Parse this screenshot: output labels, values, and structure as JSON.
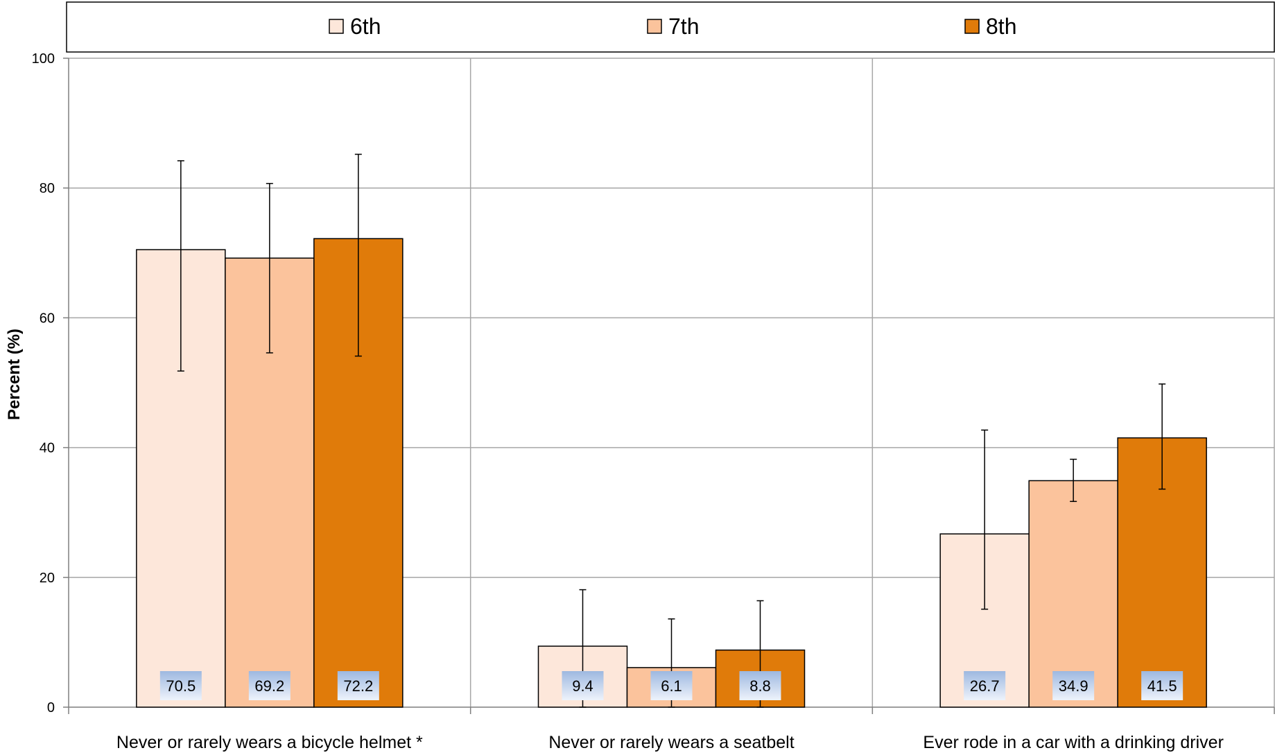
{
  "chart_data": {
    "type": "bar",
    "categories": [
      "Never or rarely wears a bicycle helmet *",
      "Never or rarely wears a seatbelt",
      "Ever rode in a car with a drinking driver"
    ],
    "series": [
      {
        "name": "6th",
        "color": "#FDE7DA",
        "values": [
          70.5,
          9.4,
          26.7
        ],
        "error_low": [
          51.8,
          0.0,
          15.1
        ],
        "error_high": [
          84.2,
          18.1,
          42.7
        ],
        "value_labels": [
          "70.5",
          "9.4",
          "26.7"
        ]
      },
      {
        "name": "7th",
        "color": "#FBC39C",
        "values": [
          69.2,
          6.1,
          34.9
        ],
        "error_low": [
          54.6,
          0.0,
          31.7
        ],
        "error_high": [
          80.7,
          13.6,
          38.2
        ],
        "value_labels": [
          "69.2",
          "6.1",
          "34.9"
        ]
      },
      {
        "name": "8th",
        "color": "#E07B0A",
        "values": [
          72.2,
          8.8,
          41.5
        ],
        "error_low": [
          54.1,
          0.0,
          33.6
        ],
        "error_high": [
          85.2,
          16.4,
          49.8
        ],
        "value_labels": [
          "72.2",
          "8.8",
          "41.5"
        ]
      }
    ],
    "ylabel": "Percent (%)",
    "xlabel": "",
    "ylim": [
      0,
      100
    ],
    "yticks": [
      "0",
      "20",
      "40",
      "60",
      "80",
      "100"
    ],
    "grid": true,
    "legend": "top"
  }
}
